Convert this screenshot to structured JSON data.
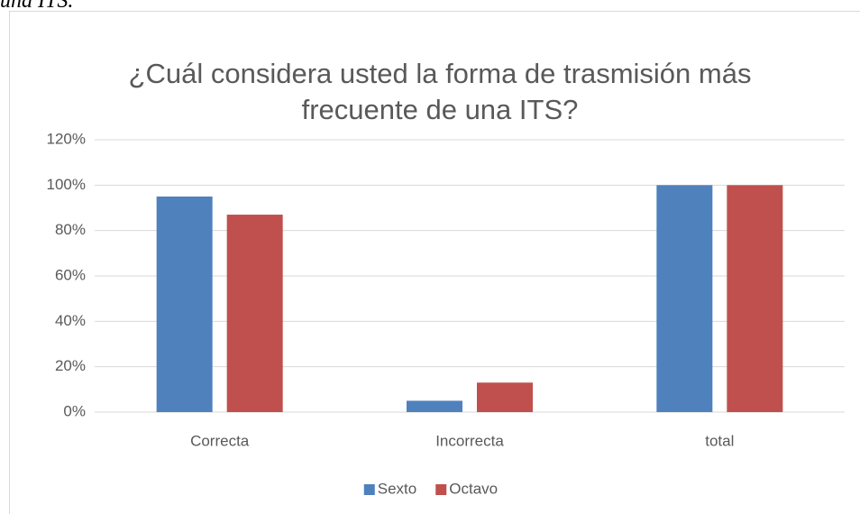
{
  "caption": "una ITS.",
  "chart_data": {
    "type": "bar",
    "title": "¿Cuál considera usted la forma de trasmisión más frecuente de una ITS?",
    "categories": [
      "Correcta",
      "Incorrecta",
      "total"
    ],
    "series": [
      {
        "name": "Sexto",
        "color": "#4f81bd",
        "values": [
          95,
          5,
          100
        ]
      },
      {
        "name": "Octavo",
        "color": "#c0504d",
        "values": [
          87,
          13,
          100
        ]
      }
    ],
    "ylim": [
      0,
      120
    ],
    "yticks": [
      {
        "value": 0,
        "label": "0%"
      },
      {
        "value": 20,
        "label": "20%"
      },
      {
        "value": 40,
        "label": "40%"
      },
      {
        "value": 60,
        "label": "60%"
      },
      {
        "value": 80,
        "label": "80%"
      },
      {
        "value": 100,
        "label": "100%"
      },
      {
        "value": 120,
        "label": "120%"
      }
    ],
    "grid": true,
    "legend": "bottom"
  }
}
